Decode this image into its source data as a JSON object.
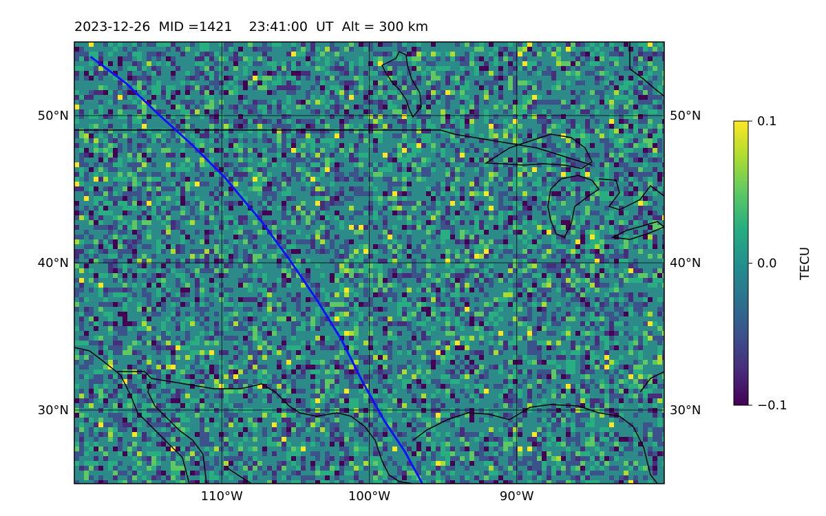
{
  "title": "2023-12-26  MID =1421    23:41:00  UT  Alt = 300 km",
  "map": {
    "lon_range": [
      -120,
      -80
    ],
    "lat_range": [
      25,
      55
    ],
    "lat_ticks": [
      {
        "value": 30,
        "label": "30°N"
      },
      {
        "value": 40,
        "label": "40°N"
      },
      {
        "value": 50,
        "label": "50°N"
      }
    ],
    "lon_ticks": [
      {
        "value": -110,
        "label": "110°W"
      },
      {
        "value": -100,
        "label": "100°W"
      },
      {
        "value": -90,
        "label": "90°W"
      }
    ],
    "track_color": "#1010ff",
    "track": [
      [
        -118.9,
        54.0
      ],
      [
        -116.5,
        52.2
      ],
      [
        -114.2,
        50.0
      ],
      [
        -112.0,
        48.0
      ],
      [
        -109.8,
        45.8
      ],
      [
        -107.3,
        42.8
      ],
      [
        -105.4,
        40.2
      ],
      [
        -103.5,
        37.4
      ],
      [
        -101.9,
        34.8
      ],
      [
        -100.5,
        32.0
      ],
      [
        -99.0,
        29.3
      ],
      [
        -97.6,
        27.2
      ],
      [
        -96.4,
        25.0
      ]
    ]
  },
  "colorbar": {
    "label": "TECU",
    "range": [
      -0.1,
      0.1
    ],
    "ticks": [
      {
        "value": 0.1,
        "label": "0.1"
      },
      {
        "value": 0.0,
        "label": "0.0"
      },
      {
        "value": -0.1,
        "label": "−0.1"
      }
    ],
    "colormap": "viridis"
  }
}
